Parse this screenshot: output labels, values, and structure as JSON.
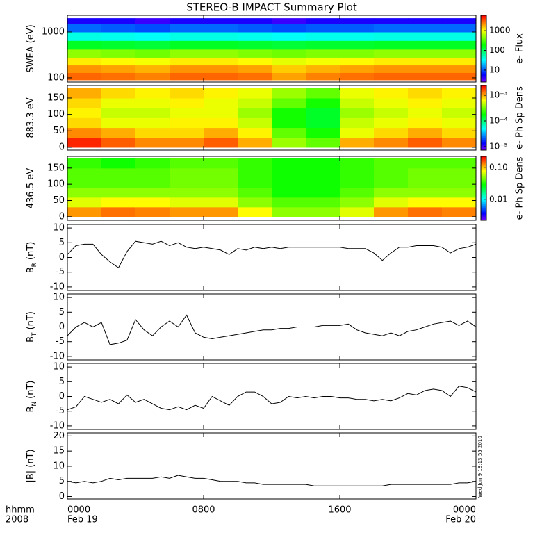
{
  "chart_data": [
    {
      "type": "heatmap",
      "title": "STEREO-B IMPACT Summary Plot",
      "ylabel": "SWEA (eV)",
      "ylog": true,
      "ylim": [
        81,
        2310
      ],
      "yticks": [
        100,
        1000
      ],
      "xlim": [
        0,
        24
      ],
      "xticks": [
        0,
        8,
        16,
        24
      ],
      "xbins": [
        0,
        2,
        4,
        6,
        8,
        10,
        12,
        14,
        16,
        18,
        20,
        22,
        24
      ],
      "ybins": [
        90,
        130,
        190,
        280,
        420,
        650,
        1000,
        1500,
        2000
      ],
      "z": [
        [
          3000,
          2800,
          2500,
          3000,
          3000,
          2800,
          2000,
          2500,
          2800,
          3000,
          3000,
          3000
        ],
        [
          2200,
          2000,
          1800,
          2200,
          2200,
          2000,
          1500,
          1800,
          2000,
          2200,
          2200,
          2200
        ],
        [
          1200,
          1100,
          1000,
          1200,
          1200,
          1100,
          900,
          1000,
          1100,
          1200,
          1200,
          1200
        ],
        [
          500,
          450,
          400,
          500,
          500,
          450,
          400,
          450,
          450,
          500,
          500,
          500
        ],
        [
          150,
          140,
          130,
          150,
          150,
          140,
          130,
          140,
          140,
          150,
          150,
          150
        ],
        [
          40,
          38,
          35,
          40,
          40,
          38,
          35,
          38,
          38,
          40,
          40,
          40
        ],
        [
          12,
          11,
          10,
          12,
          12,
          11,
          10,
          11,
          11,
          12,
          12,
          12
        ],
        [
          5,
          5,
          4,
          5,
          5,
          5,
          4,
          5,
          5,
          5,
          5,
          5
        ]
      ],
      "clabel": "e- Flux",
      "clog": true,
      "clim": [
        2.5,
        6000
      ],
      "cticks": [
        10,
        100,
        1000
      ]
    },
    {
      "type": "heatmap",
      "ylabel": "883.3 eV",
      "ylim": [
        -8.5,
        188
      ],
      "yticks": [
        0,
        50,
        100,
        150
      ],
      "xlim": [
        0,
        24
      ],
      "xticks": [
        0,
        8,
        16,
        24
      ],
      "xbins": [
        0,
        2,
        4,
        6,
        8,
        10,
        12,
        14,
        16,
        18,
        20,
        22,
        24
      ],
      "ybins": [
        0,
        30,
        60,
        90,
        120,
        150,
        180
      ],
      "z": [
        [
          0.002,
          0.0015,
          0.0012,
          0.0012,
          0.0015,
          0.001,
          0.0004,
          0.0003,
          0.001,
          0.0012,
          0.0015,
          0.0012
        ],
        [
          0.0012,
          0.001,
          0.0008,
          0.0008,
          0.001,
          0.0007,
          0.0003,
          0.0002,
          0.0006,
          0.0008,
          0.001,
          0.0008
        ],
        [
          0.0008,
          0.0006,
          0.0006,
          0.0007,
          0.0007,
          0.0005,
          0.0002,
          0.00015,
          0.0005,
          0.0006,
          0.0007,
          0.0006
        ],
        [
          0.0007,
          0.0005,
          0.0005,
          0.0006,
          0.0006,
          0.0004,
          0.0002,
          0.00015,
          0.0004,
          0.0005,
          0.0006,
          0.0005
        ],
        [
          0.0008,
          0.0006,
          0.0006,
          0.0007,
          0.0006,
          0.0005,
          0.0003,
          0.0002,
          0.0005,
          0.0006,
          0.0007,
          0.0006
        ],
        [
          0.001,
          0.0008,
          0.0007,
          0.0008,
          0.0007,
          0.0006,
          0.0004,
          0.0003,
          0.0006,
          0.0007,
          0.0008,
          0.0007
        ]
      ],
      "clabel": "e- Ph Sp Dens",
      "clog": true,
      "clim": [
        7.3e-06,
        0.0024
      ],
      "cticks": [
        {
          "value": 0.001,
          "label": "10⁻³"
        },
        {
          "value": 0.0001,
          "label": "10⁻⁴"
        },
        {
          "value": 1e-05,
          "label": "10⁻⁵"
        }
      ]
    },
    {
      "type": "heatmap",
      "ylabel": "436.5 eV",
      "ylim": [
        -11,
        186
      ],
      "yticks": [
        0,
        50,
        100,
        150
      ],
      "xlim": [
        0,
        24
      ],
      "xticks": [
        0,
        8,
        16,
        24
      ],
      "xbins": [
        0,
        2,
        4,
        6,
        8,
        10,
        12,
        14,
        16,
        18,
        20,
        22,
        24
      ],
      "ybins": [
        0,
        30,
        60,
        90,
        120,
        150,
        180
      ],
      "z": [
        [
          0.12,
          0.14,
          0.13,
          0.12,
          0.12,
          0.08,
          0.05,
          0.05,
          0.07,
          0.12,
          0.14,
          0.13
        ],
        [
          0.07,
          0.08,
          0.08,
          0.07,
          0.07,
          0.05,
          0.04,
          0.04,
          0.05,
          0.07,
          0.08,
          0.08
        ],
        [
          0.05,
          0.05,
          0.05,
          0.05,
          0.05,
          0.04,
          0.03,
          0.03,
          0.04,
          0.05,
          0.05,
          0.05
        ],
        [
          0.04,
          0.04,
          0.04,
          0.045,
          0.045,
          0.035,
          0.03,
          0.03,
          0.035,
          0.04,
          0.045,
          0.045
        ],
        [
          0.04,
          0.04,
          0.04,
          0.045,
          0.045,
          0.035,
          0.03,
          0.03,
          0.035,
          0.04,
          0.045,
          0.045
        ],
        [
          0.035,
          0.03,
          0.035,
          0.04,
          0.04,
          0.035,
          0.03,
          0.03,
          0.035,
          0.04,
          0.04,
          0.04
        ]
      ],
      "clabel": "e- Ph Sp Dens",
      "clog": true,
      "clim": [
        0.0022,
        0.22
      ],
      "cticks": [
        {
          "value": 0.1,
          "label": "0.10"
        },
        0.01
      ]
    },
    {
      "type": "line",
      "ylabel": "B",
      "ylabel_sub": "R",
      "ylabel_unit": "(nT)",
      "ylim": [
        -11.2,
        11.2
      ],
      "yticks": [
        -10,
        -5,
        0,
        5,
        10
      ],
      "xlim": [
        0,
        24
      ],
      "xticks": [
        0,
        8,
        16,
        24
      ],
      "color": "#000000",
      "x": [
        0,
        0.5,
        1,
        1.5,
        2,
        2.5,
        3,
        3.5,
        4,
        4.5,
        5,
        5.5,
        6,
        6.5,
        7,
        7.5,
        8,
        8.5,
        9,
        9.5,
        10,
        10.5,
        11,
        11.5,
        12,
        12.5,
        13,
        13.5,
        14,
        14.5,
        15,
        15.5,
        16,
        16.5,
        17,
        17.5,
        18,
        18.5,
        19,
        19.5,
        20,
        20.5,
        21,
        21.5,
        22,
        22.5,
        23,
        23.5,
        24
      ],
      "values": [
        1,
        4,
        4.5,
        4.5,
        1,
        -1.5,
        -3.5,
        2,
        5.5,
        5,
        4.5,
        5.5,
        4,
        5,
        3.5,
        3,
        3.5,
        3,
        2.5,
        1,
        3,
        2.5,
        3.5,
        3,
        3.5,
        3,
        3.5,
        3.5,
        3.5,
        3.5,
        3.5,
        3.5,
        3.5,
        3,
        3,
        3,
        1.5,
        -1,
        1.5,
        3.5,
        3.5,
        4,
        4,
        4,
        3.5,
        1.5,
        3,
        3.5,
        4.5
      ]
    },
    {
      "type": "line",
      "ylabel": "B",
      "ylabel_sub": "T",
      "ylabel_unit": "(nT)",
      "ylim": [
        -11.2,
        11.2
      ],
      "yticks": [
        -10,
        -5,
        0,
        5,
        10
      ],
      "xlim": [
        0,
        24
      ],
      "xticks": [
        0,
        8,
        16,
        24
      ],
      "color": "#000000",
      "x": [
        0,
        0.5,
        1,
        1.5,
        2,
        2.5,
        3,
        3.5,
        4,
        4.5,
        5,
        5.5,
        6,
        6.5,
        7,
        7.5,
        8,
        8.5,
        9,
        9.5,
        10,
        10.5,
        11,
        11.5,
        12,
        12.5,
        13,
        13.5,
        14,
        14.5,
        15,
        15.5,
        16,
        16.5,
        17,
        17.5,
        18,
        18.5,
        19,
        19.5,
        20,
        20.5,
        21,
        21.5,
        22,
        22.5,
        23,
        23.5,
        24
      ],
      "values": [
        -3,
        0,
        1.5,
        0,
        1.5,
        -6,
        -5.5,
        -4.5,
        2.5,
        -1,
        -3,
        0,
        2,
        0,
        4,
        -2,
        -3.5,
        -4,
        -3.5,
        -3,
        -2.5,
        -2,
        -1.5,
        -1,
        -1,
        -0.5,
        -0.5,
        0,
        0,
        0,
        0.5,
        0.5,
        0.5,
        1,
        -1,
        -2,
        -2.5,
        -3,
        -2,
        -3,
        -1.5,
        -1,
        0,
        1,
        1.5,
        2,
        0.5,
        2,
        0
      ]
    },
    {
      "type": "line",
      "ylabel": "B",
      "ylabel_sub": "N",
      "ylabel_unit": "(nT)",
      "ylim": [
        -11.2,
        11.2
      ],
      "yticks": [
        -10,
        -5,
        0,
        5,
        10
      ],
      "xlim": [
        0,
        24
      ],
      "xticks": [
        0,
        8,
        16,
        24
      ],
      "color": "#000000",
      "x": [
        0,
        0.5,
        1,
        1.5,
        2,
        2.5,
        3,
        3.5,
        4,
        4.5,
        5,
        5.5,
        6,
        6.5,
        7,
        7.5,
        8,
        8.5,
        9,
        9.5,
        10,
        10.5,
        11,
        11.5,
        12,
        12.5,
        13,
        13.5,
        14,
        14.5,
        15,
        15.5,
        16,
        16.5,
        17,
        17.5,
        18,
        18.5,
        19,
        19.5,
        20,
        20.5,
        21,
        21.5,
        22,
        22.5,
        23,
        23.5,
        24
      ],
      "values": [
        -4.5,
        -3.5,
        0,
        -1,
        -2,
        -1,
        -2.5,
        0.5,
        -2,
        -1,
        -2.5,
        -4,
        -4.5,
        -3.5,
        -4.5,
        -3,
        -4,
        0,
        -1.5,
        -3,
        0,
        1.5,
        1.5,
        0,
        -2.5,
        -2,
        0,
        -0.5,
        0,
        -0.5,
        0,
        0,
        -0.5,
        -0.5,
        -1,
        -1,
        -1.5,
        -1,
        -1.5,
        -0.5,
        1,
        0.5,
        2,
        2.5,
        2,
        0,
        3.5,
        3,
        1.5
      ]
    },
    {
      "type": "line",
      "ylabel": "|B| (nT)",
      "ylim": [
        -0.8,
        21
      ],
      "yticks": [
        0,
        5,
        10,
        15,
        20
      ],
      "xlim": [
        0,
        24
      ],
      "xticks": [
        {
          "value": 0,
          "label": "0000"
        },
        {
          "value": 8,
          "label": "0800"
        },
        {
          "value": 16,
          "label": "1600"
        },
        {
          "value": 24,
          "label": "0000"
        }
      ],
      "date_labels": [
        {
          "value": 0,
          "label": "Feb 19"
        },
        {
          "value": 24,
          "label": "Feb 20"
        }
      ],
      "xlabel": "hhmm",
      "xlabel2": "2008",
      "annotation": "Wed Jun  9 18:13:55 2010",
      "color": "#000000",
      "x": [
        0,
        0.5,
        1,
        1.5,
        2,
        2.5,
        3,
        3.5,
        4,
        4.5,
        5,
        5.5,
        6,
        6.5,
        7,
        7.5,
        8,
        8.5,
        9,
        9.5,
        10,
        10.5,
        11,
        11.5,
        12,
        12.5,
        13,
        13.5,
        14,
        14.5,
        15,
        15.5,
        16,
        16.5,
        17,
        17.5,
        18,
        18.5,
        19,
        19.5,
        20,
        20.5,
        21,
        21.5,
        22,
        22.5,
        23,
        23.5,
        24
      ],
      "values": [
        5,
        4.5,
        5,
        4.5,
        5,
        6,
        5.5,
        6,
        6,
        6,
        6,
        6.5,
        6,
        7,
        6.5,
        6,
        6,
        5.5,
        5,
        5,
        5,
        4.5,
        4.5,
        4,
        4,
        4,
        4,
        4,
        4,
        3.5,
        3.5,
        3.5,
        3.5,
        3.5,
        3.5,
        3.5,
        3.5,
        3.5,
        4,
        4,
        4,
        4,
        4,
        4,
        4,
        4,
        4.5,
        4.5,
        5
      ]
    }
  ]
}
